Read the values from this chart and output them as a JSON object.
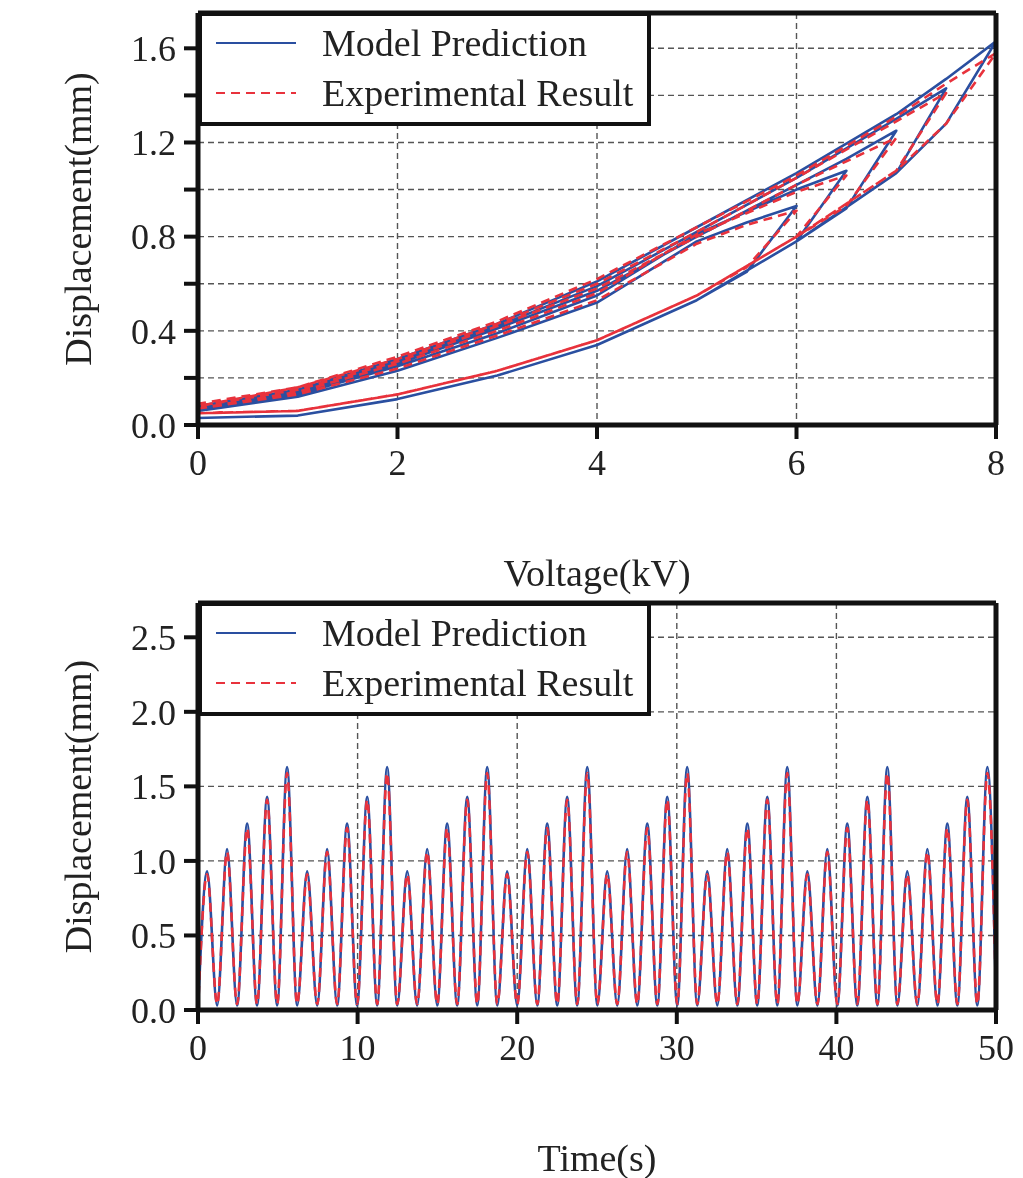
{
  "chart_data": [
    {
      "type": "line",
      "xlabel": "Voltage(kV)",
      "ylabel": "Displacement(mm)",
      "xlim": [
        0,
        8
      ],
      "ylim": [
        0,
        1.75
      ],
      "xticks": [
        0,
        2,
        4,
        6,
        8
      ],
      "yticks": [
        {
          "value": 0,
          "label": "0.0"
        },
        {
          "value": 0.2,
          "label": null
        },
        0.4,
        {
          "value": 0.6,
          "label": null
        },
        0.8,
        {
          "value": 1.0,
          "label": null
        },
        1.2,
        {
          "value": 1.4,
          "label": null
        },
        1.6
      ],
      "grid": true,
      "legend": "top left",
      "series": [
        {
          "name": "Model Prediction",
          "color": "#2a4fa0",
          "line_style": "solid",
          "x": [
            0,
            1,
            2,
            3,
            4,
            5,
            5.5,
            6,
            5.5,
            5,
            4,
            3,
            2,
            1,
            0,
            0,
            1,
            2,
            3,
            4,
            5,
            6,
            6.5,
            6,
            5,
            4,
            3,
            2,
            1,
            0,
            0,
            1,
            2,
            3,
            4,
            5,
            6,
            6.5,
            7,
            6.5,
            6,
            5,
            4,
            3,
            2,
            1,
            0,
            0,
            1,
            2,
            3,
            4,
            5,
            6,
            7,
            7.5,
            7,
            6,
            5,
            4,
            3,
            2,
            1,
            0,
            0,
            1,
            2,
            3,
            4,
            5,
            6,
            7,
            7.5,
            8,
            7.5,
            7,
            6,
            5,
            4,
            3,
            2,
            1,
            0
          ],
          "values": [
            0.03,
            0.04,
            0.11,
            0.21,
            0.34,
            0.53,
            0.65,
            0.93,
            0.86,
            0.78,
            0.52,
            0.37,
            0.23,
            0.12,
            0.06,
            0.03,
            0.04,
            0.11,
            0.21,
            0.34,
            0.53,
            0.78,
            1.08,
            1.0,
            0.81,
            0.55,
            0.39,
            0.25,
            0.13,
            0.06,
            0.03,
            0.04,
            0.11,
            0.21,
            0.34,
            0.53,
            0.78,
            0.92,
            1.25,
            1.13,
            1.02,
            0.8,
            0.57,
            0.41,
            0.26,
            0.14,
            0.07,
            0.03,
            0.04,
            0.11,
            0.21,
            0.34,
            0.53,
            0.78,
            1.07,
            1.43,
            1.3,
            1.05,
            0.82,
            0.59,
            0.42,
            0.27,
            0.15,
            0.07,
            0.03,
            0.04,
            0.11,
            0.21,
            0.34,
            0.53,
            0.78,
            1.07,
            1.28,
            1.63,
            1.47,
            1.32,
            1.07,
            0.84,
            0.61,
            0.43,
            0.28,
            0.15,
            0.08
          ]
        },
        {
          "name": "Experimental Result",
          "color": "#e8323c",
          "line_style": "dashed",
          "x": [
            0,
            1,
            2,
            3,
            4,
            5,
            5.5,
            6,
            5.5,
            5,
            4,
            3,
            2,
            1,
            0,
            0,
            1,
            2,
            3,
            4,
            5,
            6,
            6.5,
            6,
            5,
            4,
            3,
            2,
            1,
            0,
            0,
            1,
            2,
            3,
            4,
            5,
            6,
            6.5,
            7,
            6.5,
            6,
            5,
            4,
            3,
            2,
            1,
            0,
            0,
            1,
            2,
            3,
            4,
            5,
            6,
            7,
            7.5,
            7,
            6,
            5,
            4,
            3,
            2,
            1,
            0,
            0,
            1,
            2,
            3,
            4,
            5,
            6,
            7,
            7.5,
            8,
            7.5,
            7,
            6,
            5,
            4,
            3,
            2,
            1,
            0
          ],
          "values": [
            0.05,
            0.06,
            0.13,
            0.23,
            0.36,
            0.55,
            0.67,
            0.91,
            0.85,
            0.77,
            0.53,
            0.38,
            0.24,
            0.13,
            0.07,
            0.05,
            0.06,
            0.13,
            0.23,
            0.36,
            0.55,
            0.8,
            1.06,
            0.99,
            0.81,
            0.56,
            0.4,
            0.26,
            0.14,
            0.07,
            0.05,
            0.06,
            0.13,
            0.23,
            0.36,
            0.55,
            0.8,
            0.93,
            1.22,
            1.12,
            1.02,
            0.8,
            0.58,
            0.42,
            0.27,
            0.15,
            0.08,
            0.05,
            0.06,
            0.13,
            0.23,
            0.36,
            0.55,
            0.8,
            1.08,
            1.41,
            1.29,
            1.05,
            0.82,
            0.6,
            0.43,
            0.28,
            0.16,
            0.08,
            0.05,
            0.06,
            0.13,
            0.23,
            0.36,
            0.55,
            0.8,
            1.08,
            1.28,
            1.58,
            1.45,
            1.31,
            1.06,
            0.84,
            0.62,
            0.44,
            0.29,
            0.16,
            0.09
          ]
        }
      ]
    },
    {
      "type": "line",
      "xlabel": "Time(s)",
      "ylabel": "Displacement(mm)",
      "xlim": [
        0,
        50
      ],
      "ylim": [
        0,
        2.73
      ],
      "xticks": [
        0,
        10,
        20,
        30,
        40,
        50
      ],
      "yticks": [
        {
          "value": 0,
          "label": "0.0"
        },
        0.5,
        {
          "value": 1.0,
          "label": "1.0"
        },
        1.5,
        {
          "value": 2.0,
          "label": "2.0"
        },
        2.5
      ],
      "grid": true,
      "legend": "top left",
      "x": [
        0,
        0.57,
        1.2,
        1.82,
        2.45,
        3.08,
        3.7,
        4.33,
        4.96,
        5.58,
        6.21,
        6.84,
        7.47,
        8.09,
        8.72,
        9.34,
        9.97,
        10.6,
        11.23,
        11.85,
        12.48,
        13.11,
        13.73,
        14.36,
        14.99,
        15.61,
        16.24,
        16.87,
        17.5,
        18.12,
        18.75,
        19.37,
        20,
        20.63,
        21.26,
        21.88,
        22.51,
        23.13,
        23.76,
        24.39,
        25.02,
        25.64,
        26.27,
        26.89,
        27.52,
        28.15,
        28.78,
        29.4,
        30.03,
        30.65,
        31.28,
        31.91,
        32.54,
        33.16,
        33.79,
        34.42,
        35.04,
        35.67,
        36.3,
        36.92,
        37.55,
        38.18,
        38.81,
        39.43,
        40.06,
        40.68,
        41.31,
        41.94,
        42.57,
        43.19,
        43.82,
        44.44,
        45.07,
        45.7,
        46.33,
        46.95,
        47.58,
        48.2,
        48.83,
        49.46,
        50
      ],
      "series": [
        {
          "name": "Model Prediction",
          "color": "#2a4fa0",
          "line_style": "solid",
          "values": [
            0,
            0.93,
            0.03,
            1.08,
            0.03,
            1.25,
            0.03,
            1.43,
            0.03,
            1.63,
            0.03,
            0.93,
            0.03,
            1.08,
            0.03,
            1.25,
            0.03,
            1.43,
            0.03,
            1.63,
            0.03,
            0.93,
            0.03,
            1.08,
            0.03,
            1.25,
            0.03,
            1.43,
            0.03,
            1.63,
            0.03,
            0.93,
            0.03,
            1.08,
            0.03,
            1.25,
            0.03,
            1.43,
            0.03,
            1.63,
            0.03,
            0.93,
            0.03,
            1.08,
            0.03,
            1.25,
            0.03,
            1.43,
            0.03,
            1.63,
            0.03,
            0.93,
            0.03,
            1.08,
            0.03,
            1.25,
            0.03,
            1.43,
            0.03,
            1.63,
            0.03,
            0.93,
            0.03,
            1.08,
            0.03,
            1.25,
            0.03,
            1.43,
            0.03,
            1.63,
            0.03,
            0.93,
            0.03,
            1.08,
            0.03,
            1.25,
            0.03,
            1.43,
            0.03,
            1.63,
            0.1
          ]
        },
        {
          "name": "Experimental Result",
          "color": "#e8323c",
          "line_style": "dashed",
          "values": [
            0,
            0.91,
            0.04,
            1.06,
            0.04,
            1.22,
            0.04,
            1.41,
            0.04,
            1.59,
            0.04,
            0.91,
            0.04,
            1.06,
            0.04,
            1.22,
            0.04,
            1.41,
            0.04,
            1.59,
            0.04,
            0.91,
            0.04,
            1.06,
            0.04,
            1.22,
            0.04,
            1.41,
            0.04,
            1.59,
            0.04,
            0.91,
            0.04,
            1.06,
            0.04,
            1.22,
            0.04,
            1.41,
            0.04,
            1.59,
            0.04,
            0.91,
            0.04,
            1.06,
            0.04,
            1.22,
            0.04,
            1.41,
            0.04,
            1.59,
            0.04,
            0.91,
            0.04,
            1.06,
            0.04,
            1.22,
            0.04,
            1.41,
            0.04,
            1.59,
            0.04,
            0.91,
            0.04,
            1.06,
            0.04,
            1.22,
            0.04,
            1.41,
            0.04,
            1.59,
            0.04,
            0.91,
            0.04,
            1.06,
            0.04,
            1.22,
            0.04,
            1.41,
            0.04,
            1.59,
            0.12
          ]
        }
      ]
    }
  ]
}
